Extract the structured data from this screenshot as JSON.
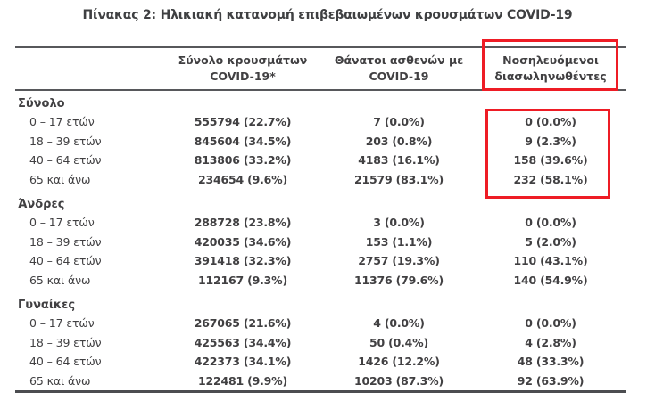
{
  "title": "Πίνακας 2: Ηλικιακή κατανομή επιβεβαιωμένων κρουσμάτων COVID-19",
  "table": {
    "column_headers": [
      {
        "line1": "Σύνολο κρουσμάτων",
        "line2": "COVID-19*"
      },
      {
        "line1": "Θάνατοι ασθενών με",
        "line2": "COVID-19"
      },
      {
        "line1": "Νοσηλευόμενοι",
        "line2": "διασωληνωθέντες"
      }
    ],
    "groups": [
      {
        "label": "Σύνολο",
        "rows": [
          {
            "label": "0 – 17 ετών",
            "cases": "555794 (22.7%)",
            "deaths": "7 (0.0%)",
            "intubated": "0 (0.0%)"
          },
          {
            "label": "18 – 39 ετών",
            "cases": "845604 (34.5%)",
            "deaths": "203 (0.8%)",
            "intubated": "9 (2.3%)"
          },
          {
            "label": "40 – 64 ετών",
            "cases": "813806 (33.2%)",
            "deaths": "4183 (16.1%)",
            "intubated": "158 (39.6%)"
          },
          {
            "label": "65 και άνω",
            "cases": "234654 (9.6%)",
            "deaths": "21579 (83.1%)",
            "intubated": "232 (58.1%)"
          }
        ]
      },
      {
        "label": "Άνδρες",
        "rows": [
          {
            "label": "0 – 17 ετών",
            "cases": "288728 (23.8%)",
            "deaths": "3 (0.0%)",
            "intubated": "0 (0.0%)"
          },
          {
            "label": "18 – 39 ετών",
            "cases": "420035 (34.6%)",
            "deaths": "153 (1.1%)",
            "intubated": "5 (2.0%)"
          },
          {
            "label": "40 – 64 ετών",
            "cases": "391418 (32.3%)",
            "deaths": "2757 (19.3%)",
            "intubated": "110 (43.1%)"
          },
          {
            "label": "65 και άνω",
            "cases": "112167 (9.3%)",
            "deaths": "11376 (79.6%)",
            "intubated": "140 (54.9%)"
          }
        ]
      },
      {
        "label": "Γυναίκες",
        "rows": [
          {
            "label": "0 – 17 ετών",
            "cases": "267065 (21.6%)",
            "deaths": "4 (0.0%)",
            "intubated": "0 (0.0%)"
          },
          {
            "label": "18 – 39 ετών",
            "cases": "425563 (34.4%)",
            "deaths": "50 (0.4%)",
            "intubated": "4 (2.8%)"
          },
          {
            "label": "40 – 64 ετών",
            "cases": "422373 (34.1%)",
            "deaths": "1426 (12.2%)",
            "intubated": "48 (33.3%)"
          },
          {
            "label": "65 και άνω",
            "cases": "122481 (9.9%)",
            "deaths": "10203 (87.3%)",
            "intubated": "92 (63.9%)"
          }
        ]
      }
    ]
  },
  "annotations": {
    "highlight_color": "#ee1c25",
    "highlighted_column": "Νοσηλευόμενοι διασωληνωθέντες",
    "highlighted_group": "Σύνολο"
  },
  "colors": {
    "text": "#414042",
    "rule": "#57585b",
    "highlight": "#ee1c25",
    "background": "#ffffff"
  }
}
